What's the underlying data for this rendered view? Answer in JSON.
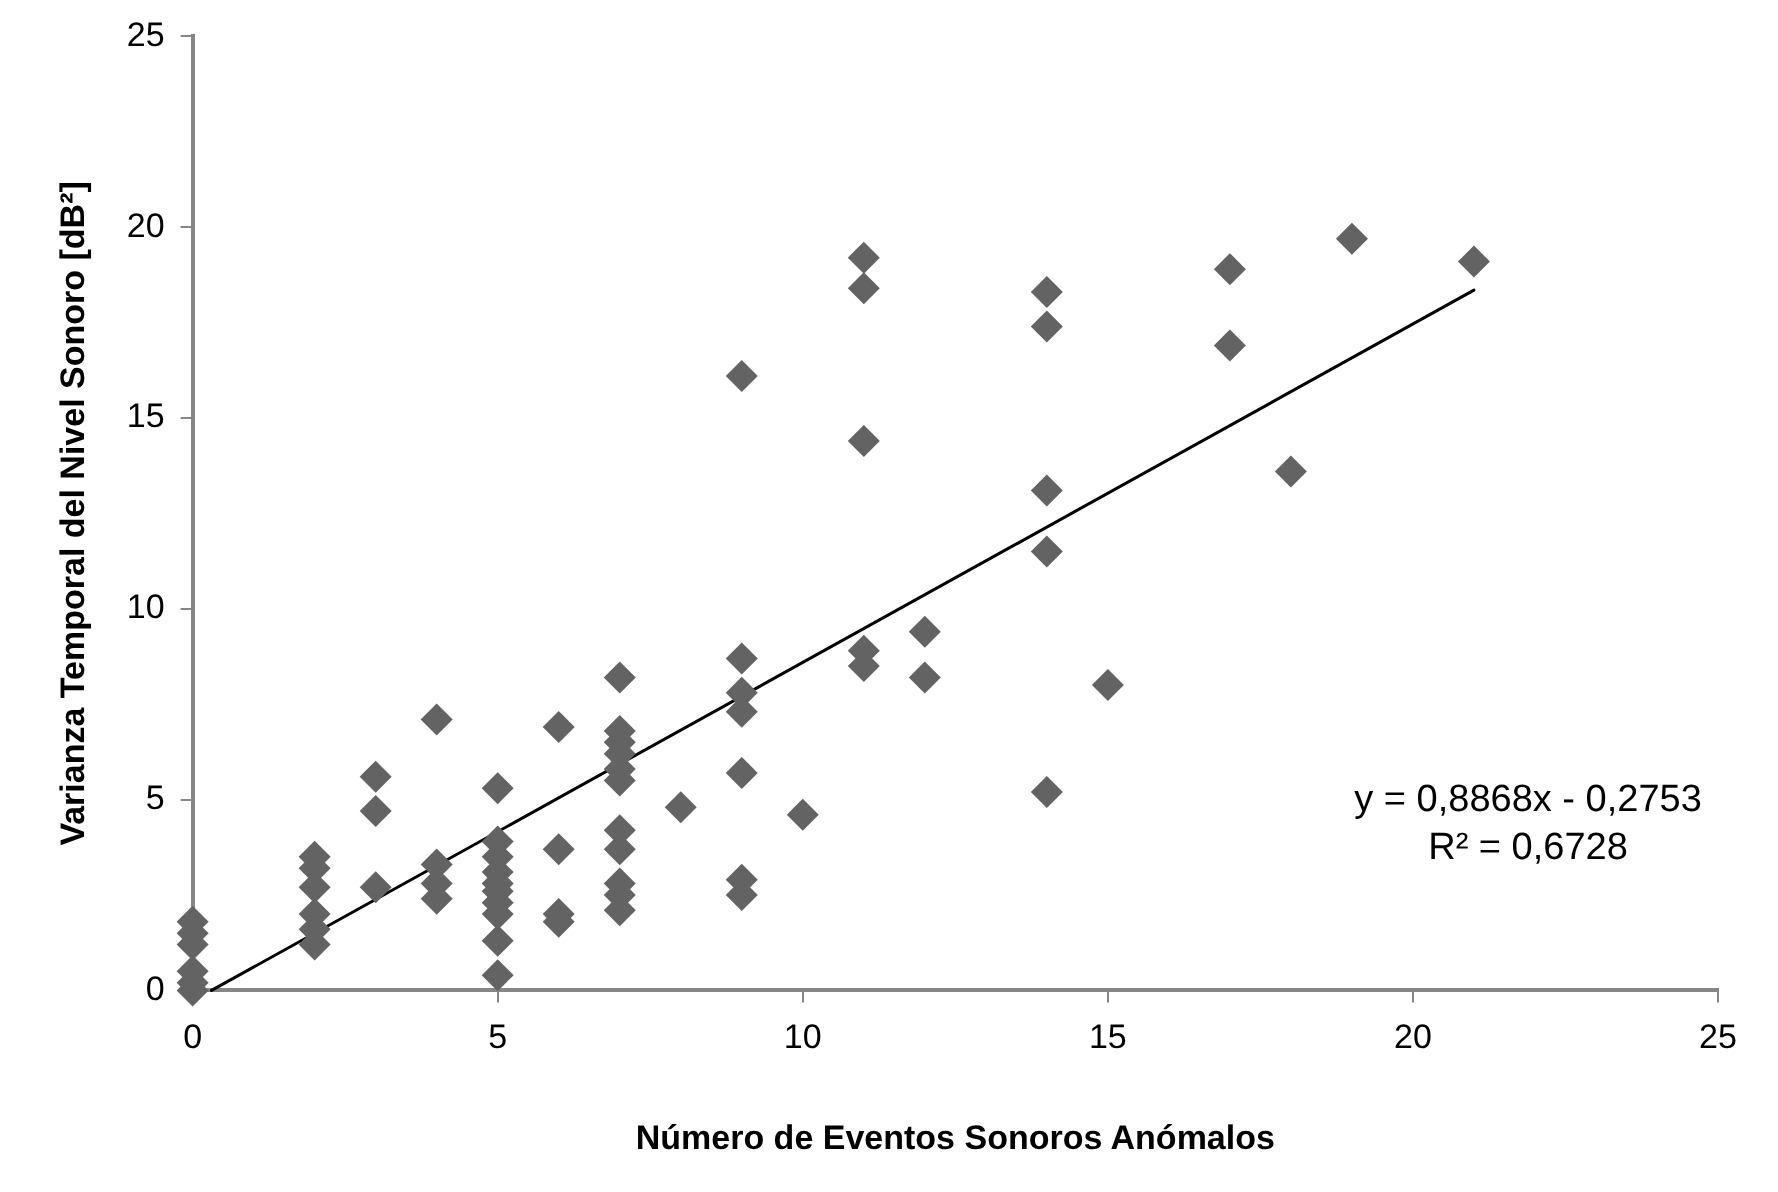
{
  "chart_data": {
    "type": "scatter",
    "xlabel": "Número de Eventos Sonoros Anómalos",
    "ylabel": "Varianza Temporal del Nivel Sonoro [dB²]",
    "xlim": [
      0,
      25
    ],
    "xticks": [
      0,
      5,
      10,
      15,
      20,
      25
    ],
    "ylim": [
      0,
      25
    ],
    "yticks": [
      0,
      5,
      10,
      15,
      20,
      25
    ],
    "grid": false,
    "legend": false,
    "marker": "diamond",
    "series": [
      {
        "color": "#636363",
        "x": [
          0,
          0,
          0,
          0,
          0,
          0,
          2,
          2,
          2,
          2,
          2,
          2,
          3,
          3,
          3,
          4,
          4,
          4,
          4,
          5,
          5,
          5,
          5,
          5,
          5,
          5,
          5,
          5,
          5,
          6,
          6,
          6,
          6,
          7,
          7,
          7,
          7,
          7,
          7,
          7,
          7,
          7,
          7,
          7,
          8,
          9,
          9,
          9,
          9,
          9,
          9,
          9,
          10,
          11,
          11,
          11,
          11,
          11,
          12,
          12,
          14,
          14,
          14,
          14,
          14,
          15,
          17,
          17,
          18,
          19,
          21
        ],
        "values": [
          1.8,
          1.5,
          1.2,
          0.5,
          0.2,
          0.0,
          3.5,
          3.2,
          2.7,
          2.0,
          1.6,
          1.2,
          5.6,
          4.7,
          2.7,
          7.1,
          3.3,
          2.8,
          2.4,
          5.3,
          3.9,
          3.5,
          3.1,
          2.8,
          2.6,
          2.3,
          2.0,
          1.3,
          0.4,
          6.9,
          3.7,
          2.0,
          1.8,
          8.2,
          6.8,
          6.5,
          6.2,
          5.8,
          5.5,
          4.2,
          3.7,
          2.8,
          2.5,
          2.1,
          4.8,
          16.1,
          8.7,
          7.8,
          7.3,
          5.7,
          2.9,
          2.5,
          4.6,
          19.2,
          18.4,
          14.4,
          8.9,
          8.5,
          9.4,
          8.2,
          18.3,
          17.4,
          13.1,
          11.5,
          5.2,
          8.0,
          18.9,
          16.9,
          13.6,
          19.7,
          19.1
        ]
      },
      {
        "type": "line",
        "color": "#000000",
        "marker": "none",
        "x": [
          0.31,
          21
        ],
        "values": [
          0,
          18.35
        ]
      }
    ],
    "annotations": [
      "y = 0,8868x - 0,2753",
      "R² = 0,6728"
    ]
  }
}
